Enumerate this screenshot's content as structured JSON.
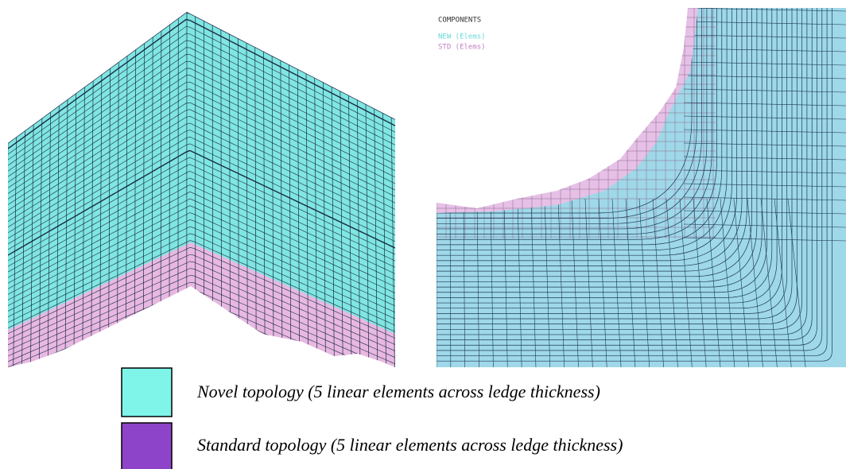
{
  "components": {
    "title": "COMPONENTS",
    "items": [
      "NEW (Elems)",
      "STD (Elems)"
    ]
  },
  "legend": [
    {
      "label": "Novel topology (5 linear elements across ledge thickness)"
    },
    {
      "label": "Standard topology (5 linear elements across ledge thickness)"
    }
  ]
}
